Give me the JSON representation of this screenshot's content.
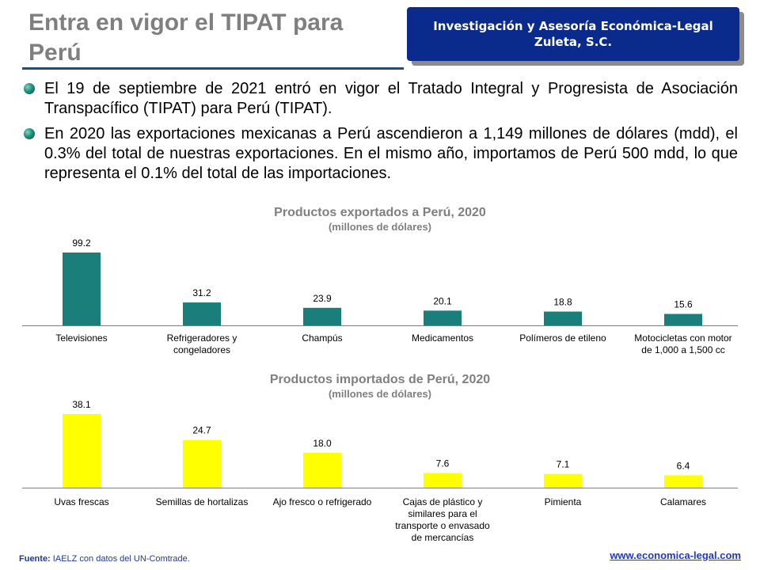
{
  "header": {
    "title": "Entra en vigor el TIPAT para Perú",
    "banner_line1": "Investigación y Asesoría Económica-Legal",
    "banner_line2": "Zuleta, S.C."
  },
  "bullets": [
    "El 19 de septiembre de 2021 entró en vigor el Tratado Integral y Progresista de Asociación Transpacífico (TIPAT) para Perú (TIPAT).",
    "En 2020 las exportaciones mexicanas a Perú ascendieron a 1,149 millones de dólares (mdd), el 0.3% del total de nuestras exportaciones. En el mismo año, importamos de Perú 500 mdd, lo que representa el 0.1% del total de las importaciones."
  ],
  "chart_data": [
    {
      "type": "bar",
      "title": "Productos exportados a Perú, 2020",
      "subtitle": "(millones de dólares)",
      "categories": [
        [
          "Televisiones"
        ],
        [
          "Refrigeradores y",
          "congeladores"
        ],
        [
          "Champús"
        ],
        [
          "Medicamentos"
        ],
        [
          "Polímeros de etileno"
        ],
        [
          "Motocicletas con motor",
          "de 1,000 a 1,500 cc"
        ]
      ],
      "values": [
        99.2,
        31.2,
        23.9,
        20.1,
        18.8,
        15.6
      ],
      "value_labels": [
        "99.2",
        "31.2",
        "23.9",
        "20.1",
        "18.8",
        "15.6"
      ],
      "ylim": [
        0,
        99.2
      ],
      "color": "#1a7f7a"
    },
    {
      "type": "bar",
      "title": "Productos importados de Perú, 2020",
      "subtitle": "(millones de dólares)",
      "categories": [
        [
          "Uvas frescas"
        ],
        [
          "Semillas de hortalizas"
        ],
        [
          "Ajo fresco o refrigerado"
        ],
        [
          "Cajas de plástico y",
          "similares para el",
          "transporte o envasado",
          "de mercancías"
        ],
        [
          "Pimienta"
        ],
        [
          "Calamares"
        ]
      ],
      "values": [
        38.1,
        24.7,
        18.0,
        7.6,
        7.1,
        6.4
      ],
      "value_labels": [
        "38.1",
        "24.7",
        "18.0",
        "7.6",
        "7.1",
        "6.4"
      ],
      "ylim": [
        0,
        38.1
      ],
      "color": "#ffff00"
    }
  ],
  "footer": {
    "source_label": "Fuente:",
    "source_text": "IAELZ con datos del UN-Comtrade.",
    "url": "www.economica-legal.com"
  }
}
